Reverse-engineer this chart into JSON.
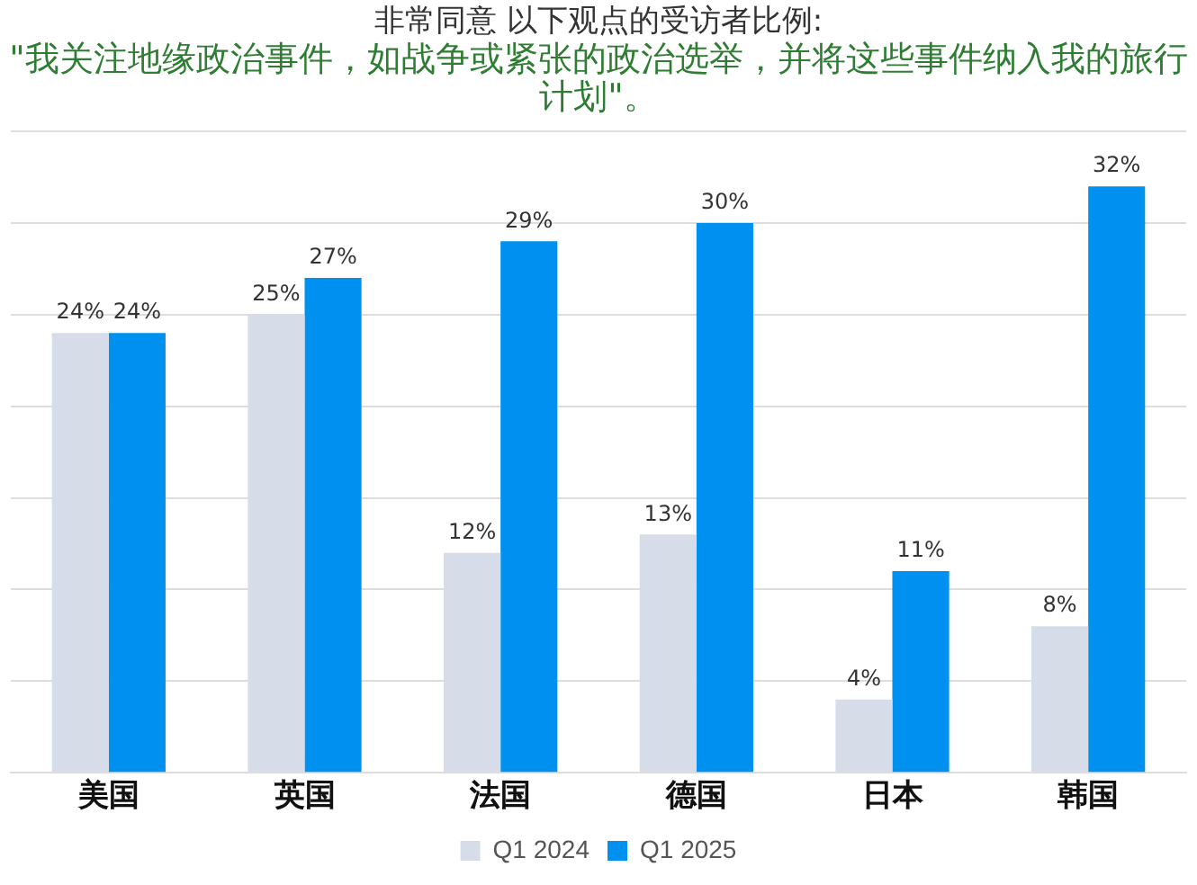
{
  "chart_data": {
    "type": "bar",
    "title": "非常同意 以下观点的受访者比例:",
    "subtitle": "\"我关注地缘政治事件，如战争或紧张的政治选举，并将这些事件纳入我的旅行计划\"。",
    "categories": [
      "美国",
      "英国",
      "法国",
      "德国",
      "日本",
      "韩国"
    ],
    "series": [
      {
        "name": "Q1 2024",
        "color": "#d6dde8",
        "values": [
          24,
          25,
          12,
          13,
          4,
          8
        ],
        "value_labels": [
          "24%",
          "25%",
          "12%",
          "13%",
          "4%",
          "8%"
        ]
      },
      {
        "name": "Q1 2025",
        "color": "#0090f0",
        "values": [
          24,
          27,
          29,
          30,
          11,
          32
        ],
        "value_labels": [
          "24%",
          "27%",
          "29%",
          "30%",
          "11%",
          "32%"
        ]
      }
    ],
    "grid": "y",
    "tick_labels": "x",
    "legend": "bottom"
  }
}
